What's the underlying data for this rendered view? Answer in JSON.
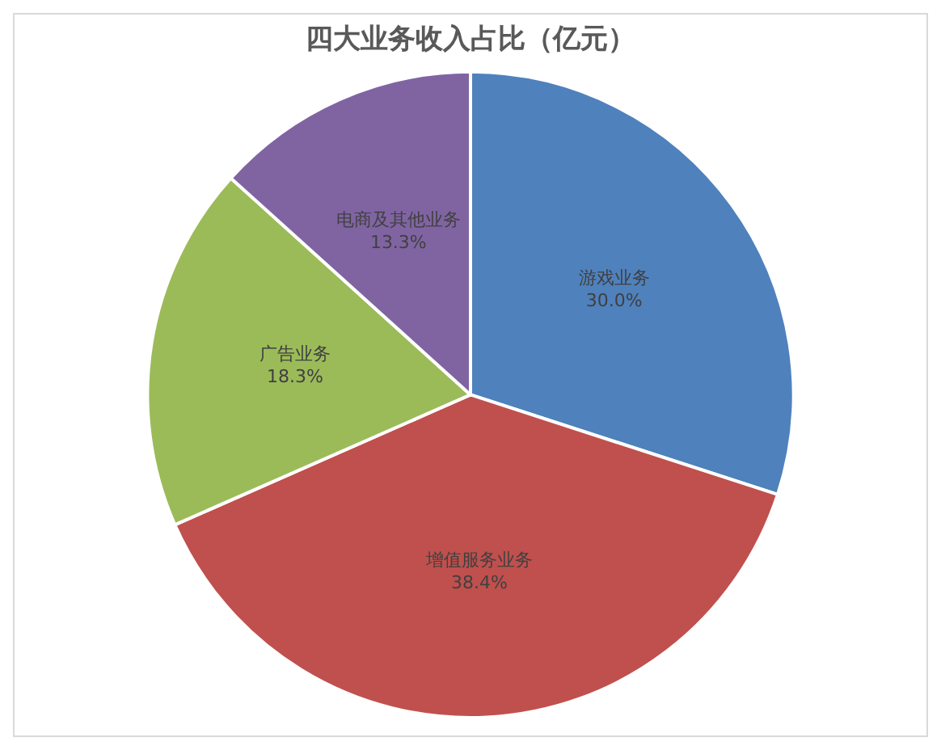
{
  "chart_data": {
    "type": "pie",
    "title": "四大业务收入占比（亿元）",
    "categories": [
      "游戏业务",
      "增值服务业务",
      "广告业务",
      "电商及其他业务"
    ],
    "values": [
      30.0,
      38.4,
      18.3,
      13.3
    ],
    "value_labels": [
      "30.0%",
      "38.4%",
      "18.3%",
      "13.3%"
    ],
    "colors": [
      "#4f81bd",
      "#c0504d",
      "#9bbb59",
      "#8064a2"
    ],
    "legend": false
  }
}
